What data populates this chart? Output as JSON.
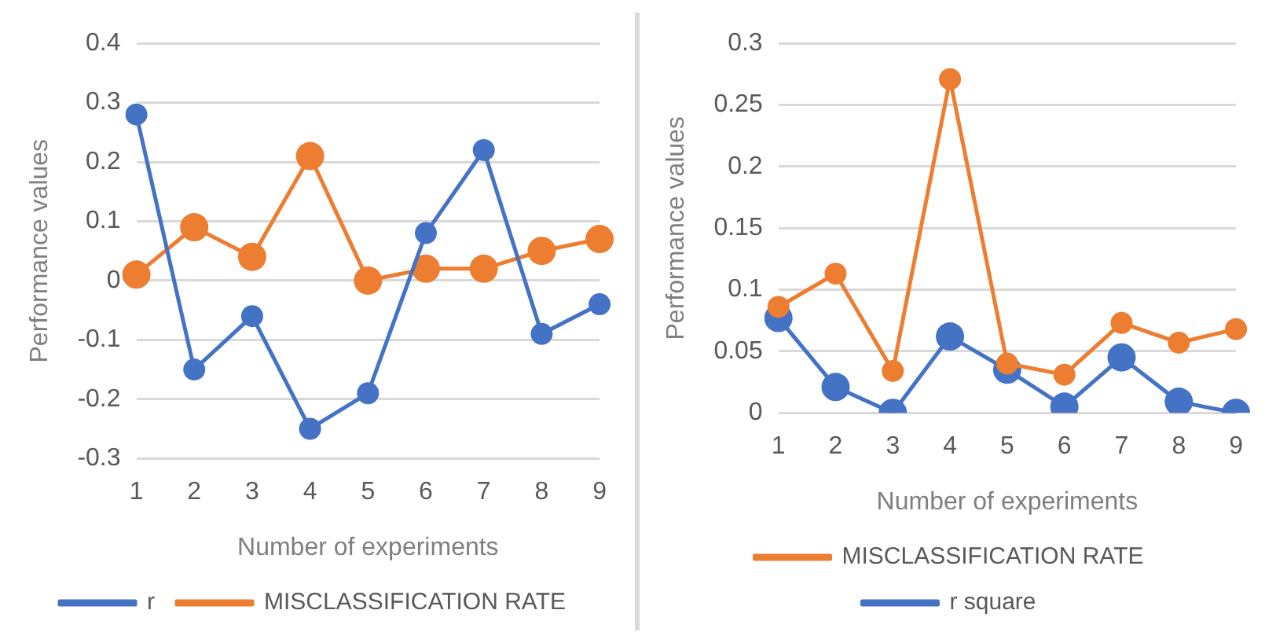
{
  "chart_data": [
    {
      "type": "line",
      "categories": [
        "1",
        "2",
        "3",
        "4",
        "5",
        "6",
        "7",
        "8",
        "9"
      ],
      "xlabel": "Number of experiments",
      "ylabel": "Performance values",
      "ylim": [
        -0.3,
        0.4
      ],
      "yticks": [
        -0.3,
        -0.2,
        -0.1,
        0,
        0.1,
        0.2,
        0.3,
        0.4
      ],
      "grid": "y",
      "legend": "bottom",
      "marker": "circle",
      "series": [
        {
          "name": "r",
          "color": "#4472c4",
          "values": [
            0.28,
            -0.15,
            -0.06,
            -0.25,
            -0.19,
            0.08,
            0.22,
            -0.09,
            -0.04
          ]
        },
        {
          "name": "MISCLASSIFICATION RATE",
          "color": "#ed7d31",
          "values": [
            0.01,
            0.09,
            0.04,
            0.21,
            0,
            0.02,
            0.02,
            0.05,
            0.07
          ]
        }
      ]
    },
    {
      "type": "line",
      "categories": [
        "1",
        "2",
        "3",
        "4",
        "5",
        "6",
        "7",
        "8",
        "9"
      ],
      "xlabel": "Number of experiments",
      "ylabel": "Performance values",
      "ylim": [
        0,
        0.3
      ],
      "yticks": [
        0,
        0.05,
        0.1,
        0.15,
        0.2,
        0.25,
        0.3
      ],
      "grid": "y",
      "legend": "bottom",
      "marker": "circle",
      "series": [
        {
          "name": "MISCLASSIFICATION RATE",
          "color": "#ed7d31",
          "values": [
            0.086,
            0.113,
            0.034,
            0.271,
            0.04,
            0.031,
            0.073,
            0.057,
            0.068
          ]
        },
        {
          "name": "r square",
          "color": "#4472c4",
          "values": [
            0.077,
            0.021,
            0,
            0.062,
            0.035,
            0.005,
            0.045,
            0.009,
            0
          ]
        }
      ]
    }
  ]
}
